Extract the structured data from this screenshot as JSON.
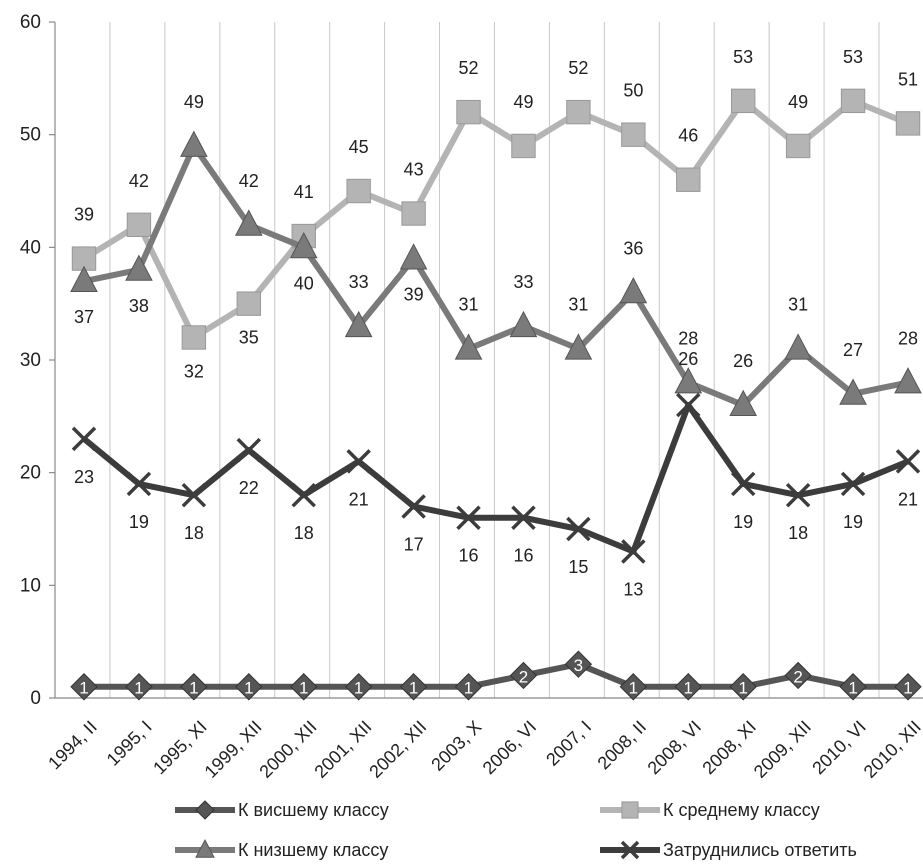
{
  "chart_data": {
    "type": "line",
    "title": "",
    "xlabel": "",
    "ylabel": "",
    "ylim": [
      0,
      60
    ],
    "yticks": [
      "0",
      "10",
      "20",
      "30",
      "40",
      "50",
      "60"
    ],
    "categories": [
      "1994, II",
      "1995, I",
      "1995, XI",
      "1999, XII",
      "2000, XII",
      "2001, XII",
      "2002, XII",
      "2003, X",
      "2006, VI",
      "2007, I",
      "2008, II",
      "2008, VI",
      "2008, XI",
      "2009, XII",
      "2010, VI",
      "2010, XII"
    ],
    "grid": "vertical",
    "legend_position": "bottom",
    "series": [
      {
        "name": "К висшему классу",
        "marker": "diamond",
        "color": "#555555",
        "values": [
          1,
          1,
          1,
          1,
          1,
          1,
          1,
          1,
          2,
          3,
          1,
          1,
          1,
          2,
          1,
          1
        ],
        "labels": [
          "1",
          "1",
          "1",
          "1",
          "1",
          "1",
          "1",
          "1",
          "2",
          "3",
          "1",
          "1",
          "1",
          "2",
          "1",
          "1"
        ]
      },
      {
        "name": "К среднему классу",
        "marker": "square",
        "color": "#b4b4b4",
        "values": [
          39,
          42,
          32,
          35,
          41,
          45,
          43,
          52,
          49,
          52,
          50,
          46,
          53,
          49,
          53,
          51
        ],
        "labels": [
          "39",
          "42",
          "32",
          "35",
          "41",
          "45",
          "43",
          "52",
          "49",
          "52",
          "50",
          "46",
          "53",
          "49",
          "53",
          "51"
        ]
      },
      {
        "name": "К низшему классу",
        "marker": "triangle",
        "color": "#7a7a7a",
        "values": [
          37,
          38,
          49,
          42,
          40,
          33,
          39,
          31,
          33,
          31,
          36,
          28,
          26,
          31,
          27,
          28
        ],
        "labels": [
          "37",
          "38",
          "49",
          "42",
          "40",
          "33",
          "39",
          "31",
          "33",
          "31",
          "36",
          "28",
          "26",
          "31",
          "27",
          "28"
        ]
      },
      {
        "name": "Затруднились ответить",
        "marker": "x",
        "color": "#3c3c3c",
        "values": [
          23,
          19,
          18,
          22,
          18,
          21,
          17,
          16,
          16,
          15,
          13,
          26,
          19,
          18,
          19,
          21
        ],
        "labels": [
          "23",
          "19",
          "18",
          "22",
          "18",
          "21",
          "17",
          "16",
          "16",
          "15",
          "13",
          "26",
          "19",
          "18",
          "19",
          "21"
        ]
      }
    ]
  }
}
